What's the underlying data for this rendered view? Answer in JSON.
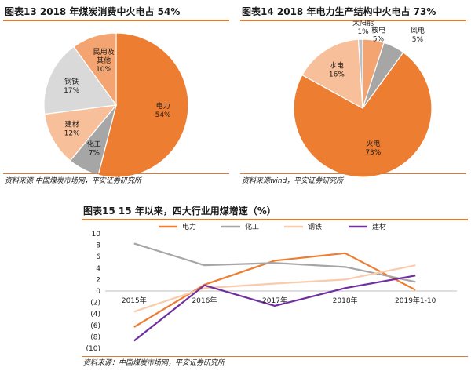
{
  "charts": {
    "chart13": {
      "title": "图表13  2018 年煤炭消费中火电占 54%",
      "source": "资料来源 中国煤炭市场网，平安证券研究所"
    },
    "chart14": {
      "title": "图表14   2018 年电力生产结构中火电占 73%",
      "source": "资料来源wind，平安证券研究所"
    },
    "chart15": {
      "title": "图表15    15 年以来，四大行业用煤增速（%）",
      "source": "资料来源：中国煤炭市场网，平安证券研究所"
    }
  },
  "chart_data": [
    {
      "type": "pie",
      "title": "图表13  2018 年煤炭消费中火电占 54%",
      "slices": [
        {
          "label": "电力",
          "value": 54,
          "value_label": "54%",
          "color": "#ed7d31"
        },
        {
          "label": "化工",
          "value": 7,
          "value_label": "7%",
          "color": "#a6a6a6"
        },
        {
          "label": "建材",
          "value": 12,
          "value_label": "12%",
          "color": "#f8c09a"
        },
        {
          "label": "钢铁",
          "value": 17,
          "value_label": "17%",
          "color": "#d9d9d9"
        },
        {
          "label": "民用及\n其他",
          "value": 10,
          "value_label": "10%",
          "color": "#f4a470"
        }
      ]
    },
    {
      "type": "pie",
      "title": "图表14   2018 年电力生产结构中火电占 73%",
      "slices": [
        {
          "label": "火电",
          "value": 73,
          "value_label": "73%",
          "color": "#ed7d31"
        },
        {
          "label": "水电",
          "value": 16,
          "value_label": "16%",
          "color": "#f8c09a"
        },
        {
          "label": "太阳能",
          "value": 1,
          "value_label": "1%",
          "color": "#bfbfbf"
        },
        {
          "label": "核电",
          "value": 5,
          "value_label": "5%",
          "color": "#f4a470"
        },
        {
          "label": "风电",
          "value": 5,
          "value_label": "5%",
          "color": "#a6a6a6"
        }
      ]
    },
    {
      "type": "line",
      "title": "图表15    15 年以来，四大行业用煤增速（%）",
      "categories": [
        "2015年",
        "2016年",
        "2017年",
        "2018年",
        "2019年1-10"
      ],
      "ylim": [
        -10,
        10
      ],
      "yticks": [
        10,
        8,
        6,
        4,
        2,
        0,
        -2,
        -4,
        -6,
        -8,
        -10
      ],
      "ytick_labels": [
        "10",
        "8",
        "6",
        "4",
        "2",
        "0",
        "(2)",
        "(4)",
        "(6)",
        "(8)",
        "(10)"
      ],
      "legend_position": "top",
      "series": [
        {
          "name": "电力",
          "color": "#ed7d31",
          "values": [
            -6.3,
            1.1,
            5.3,
            6.6,
            0.2
          ]
        },
        {
          "name": "化工",
          "color": "#a6a6a6",
          "values": [
            8.3,
            4.5,
            4.9,
            4.2,
            1.6
          ]
        },
        {
          "name": "钢铁",
          "color": "#f8cbad",
          "values": [
            -3.6,
            0.5,
            1.3,
            2.0,
            4.5
          ]
        },
        {
          "name": "建材",
          "color": "#7030a0",
          "values": [
            -8.7,
            1.0,
            -2.6,
            0.5,
            2.7
          ]
        }
      ]
    }
  ]
}
